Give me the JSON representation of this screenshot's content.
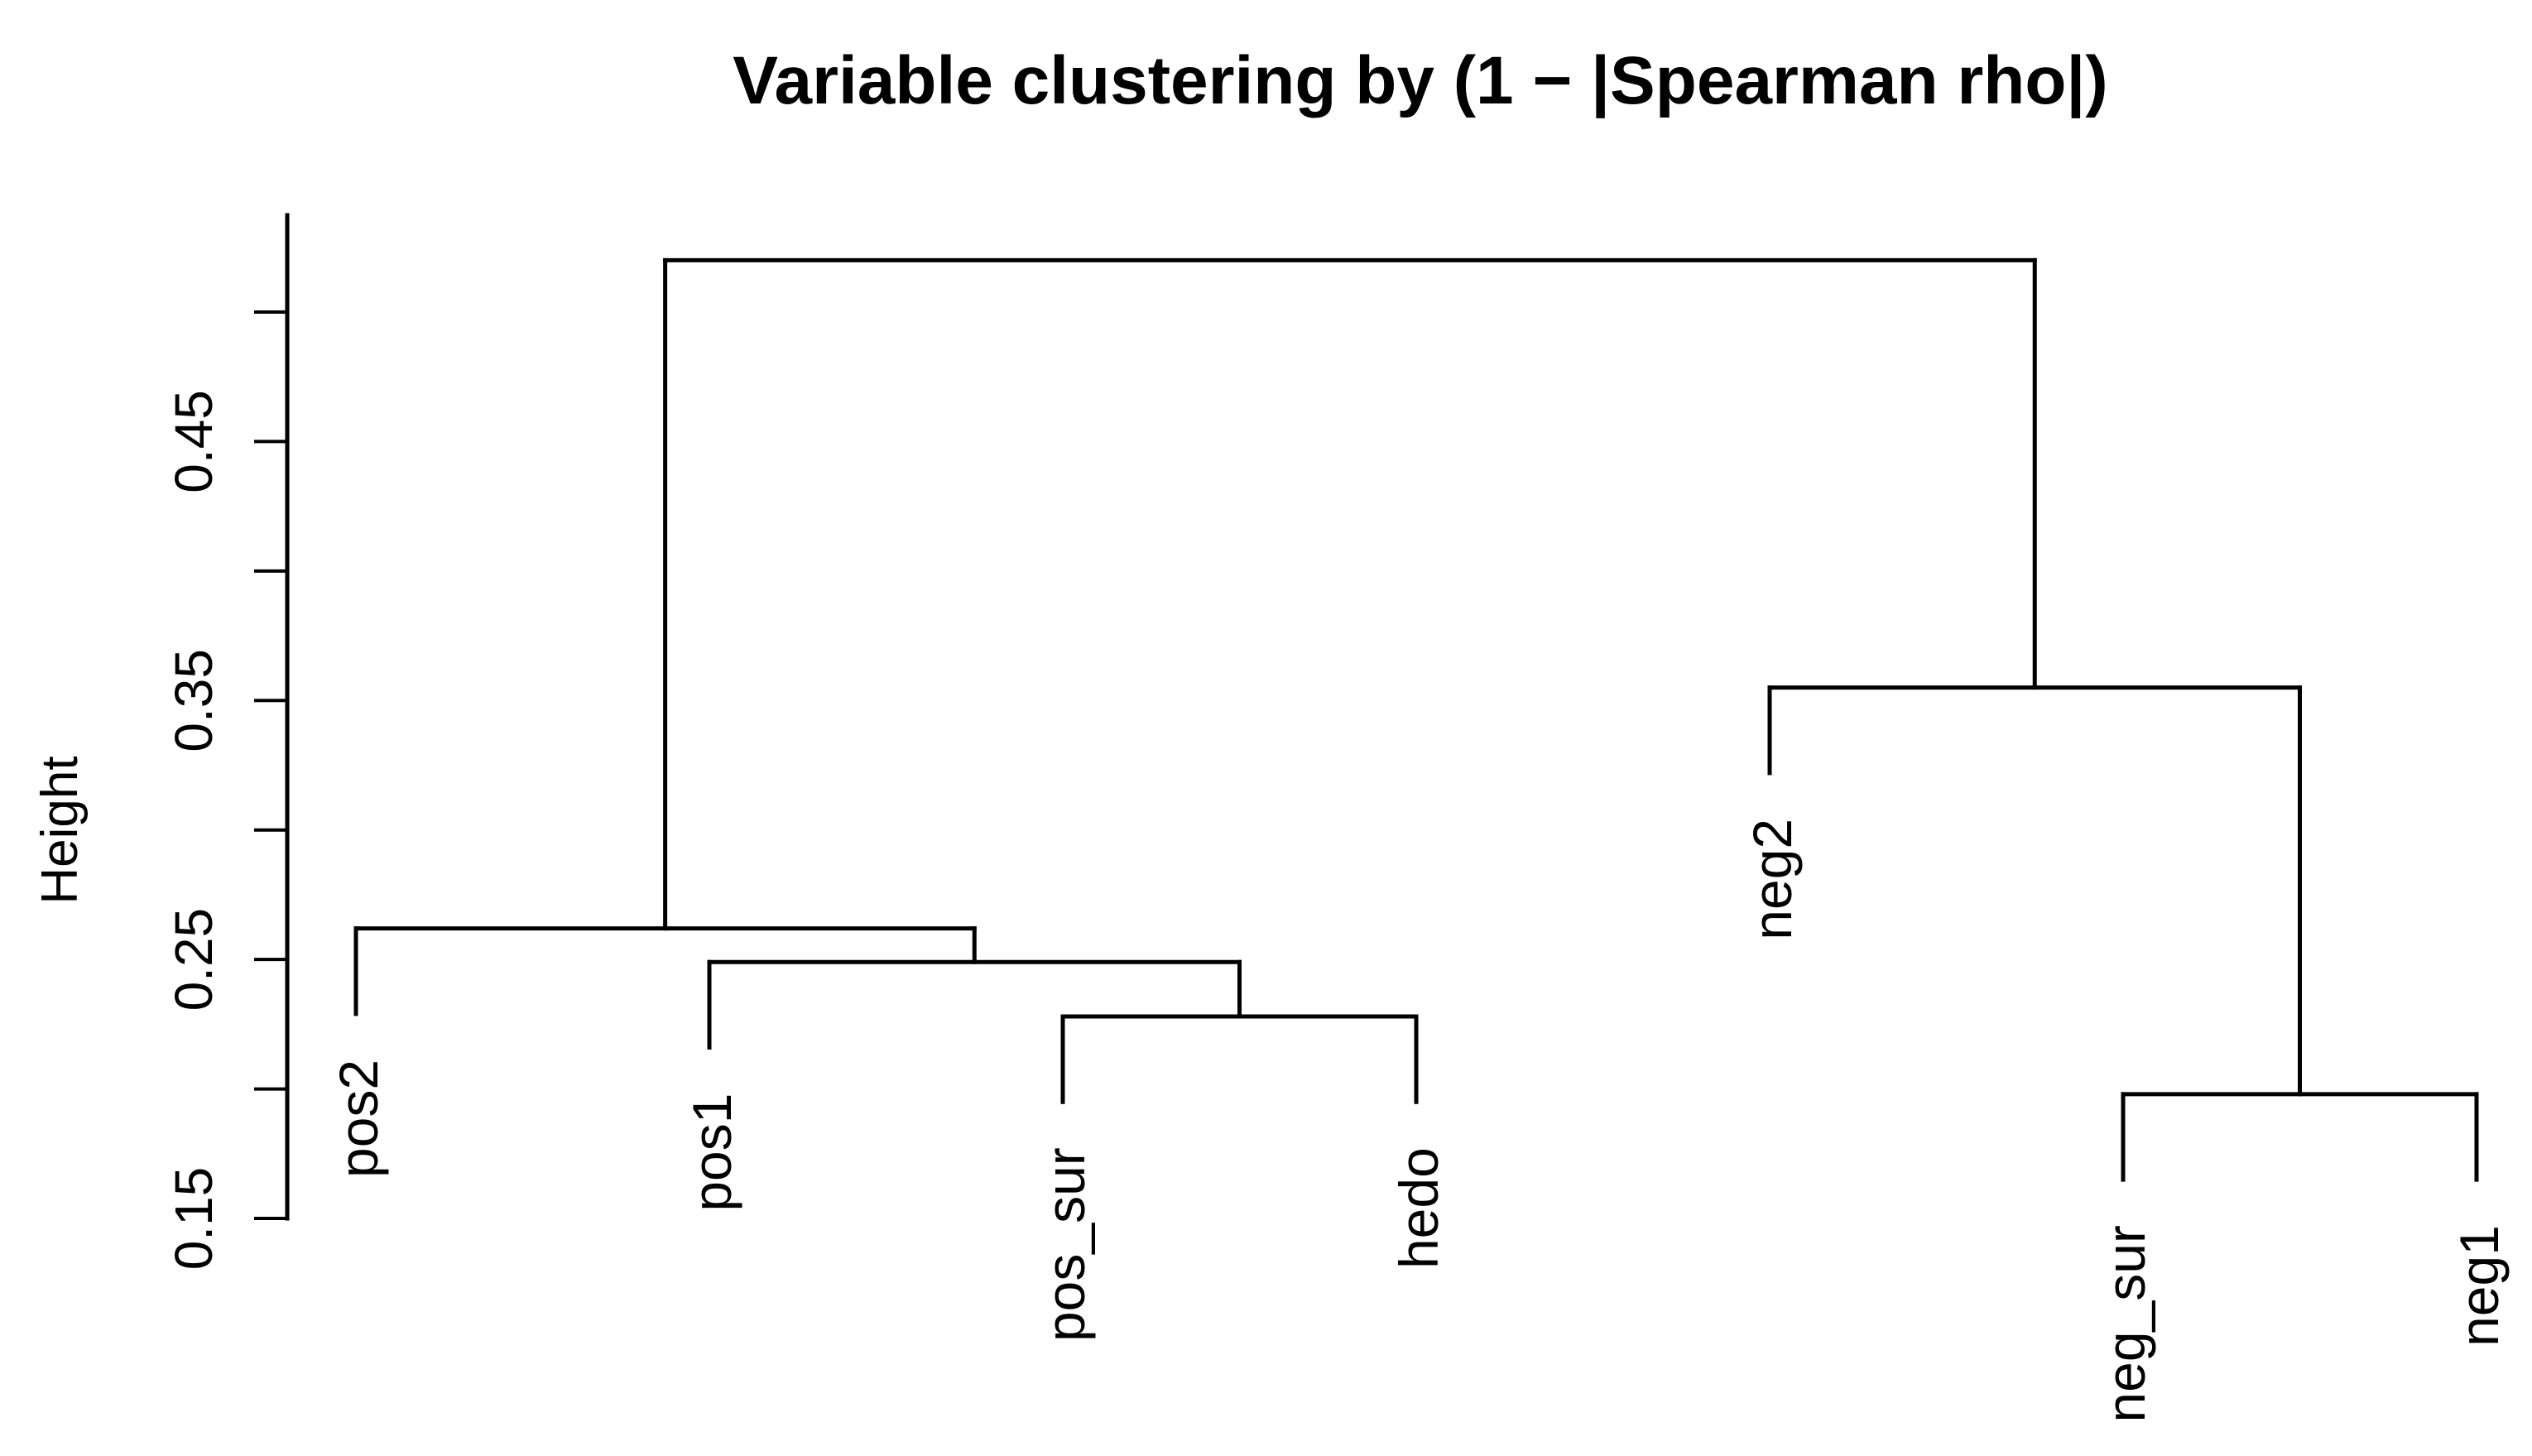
{
  "colors": {
    "background": "#ffffff",
    "line": "#000000",
    "text": "#000000"
  },
  "chart_data": {
    "type": "dendrogram",
    "title": "Variable clustering by (1 − |Spearman rho|)",
    "ylabel": "Height",
    "ylim": [
      0.15,
      0.54
    ],
    "grid": false,
    "legend": false,
    "yticks": [
      0.5,
      0.45,
      0.4,
      0.35,
      0.3,
      0.25,
      0.2,
      0.15
    ],
    "ytick_labels_shown": [
      "0.45",
      "0.35",
      "0.25",
      "0.15"
    ],
    "leaves": [
      "pos2",
      "pos1",
      "pos_sur",
      "hedo",
      "neg2",
      "neg_sur",
      "neg1"
    ],
    "merges": [
      {
        "id": "M1",
        "children": [
          "pos_sur",
          "hedo"
        ],
        "height": 0.228
      },
      {
        "id": "M2",
        "children": [
          "pos1",
          "M1"
        ],
        "height": 0.249
      },
      {
        "id": "M3",
        "children": [
          "pos2",
          "M2"
        ],
        "height": 0.262
      },
      {
        "id": "M4",
        "children": [
          "neg_sur",
          "neg1"
        ],
        "height": 0.198
      },
      {
        "id": "M5",
        "children": [
          "neg2",
          "M4"
        ],
        "height": 0.355
      },
      {
        "id": "M6",
        "children": [
          "M3",
          "M5"
        ],
        "height": 0.52
      }
    ],
    "leaf_hang": 0.033
  }
}
